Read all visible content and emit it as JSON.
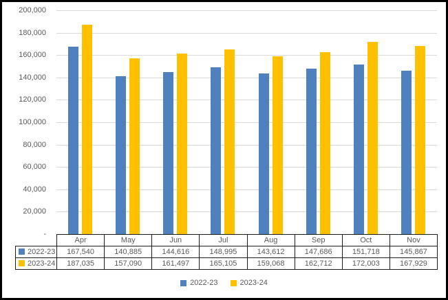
{
  "chart_data": {
    "type": "bar",
    "title": "",
    "xlabel": "",
    "ylabel": "",
    "categories": [
      "Apr",
      "May",
      "Jun",
      "Jul",
      "Aug",
      "Sep",
      "Oct",
      "Nov"
    ],
    "series": [
      {
        "name": "2022-23",
        "color": "#4E81BD",
        "values": [
          167540,
          140885,
          144616,
          148995,
          143612,
          147686,
          151718,
          145867
        ],
        "value_labels": [
          "167,540",
          "140,885",
          "144,616",
          "148,995",
          "143,612",
          "147,686",
          "151,718",
          "145,867"
        ]
      },
      {
        "name": "2023-24",
        "color": "#FFC000",
        "values": [
          187035,
          157090,
          161497,
          165105,
          159068,
          162712,
          172003,
          167929
        ],
        "value_labels": [
          "187,035",
          "157,090",
          "161,497",
          "165,105",
          "159,068",
          "162,712",
          "172,003",
          "167,929"
        ]
      }
    ],
    "ylim": [
      0,
      200000
    ],
    "ytick_step": 20000,
    "ytick_labels": [
      "200,000",
      "180,000",
      "160,000",
      "140,000",
      "120,000",
      "100,000",
      "80,000",
      "60,000",
      "40,000",
      "20,000",
      "-"
    ],
    "grid": true,
    "legend_position": "bottom",
    "data_table_shown": true
  },
  "styles": {
    "gridline_color": "#D9D9D9",
    "text_color": "#595959",
    "table_border_color": "#1a1a1a",
    "frame_border_color": "#000000",
    "background": "#FFFFFF"
  }
}
